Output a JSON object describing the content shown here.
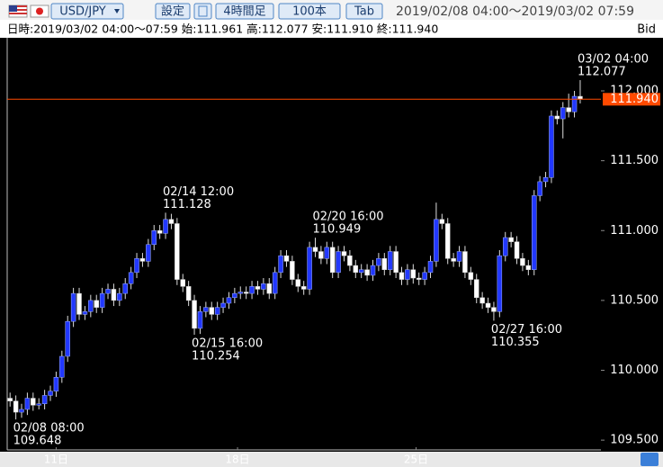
{
  "header": {
    "pair": "USD/JPY",
    "buttons": [
      "設定",
      "4時間足",
      "100本",
      "Tab"
    ],
    "range": "2019/02/08 04:00〜2019/03/02 07:59"
  },
  "info": {
    "text": "日時:2019/03/02 04:00〜07:59 始:111.961 高:112.077 安:111.910 終:111.940",
    "side": "Bid"
  },
  "chart_data": {
    "type": "candlestick",
    "up_color": "#2238ff",
    "down_color": "#ffffff",
    "ylim": [
      109.43,
      112.38
    ],
    "yticks": [
      {
        "value": 109.5,
        "label": "109.500"
      },
      {
        "value": 110,
        "label": "110.000"
      },
      {
        "value": 110.5,
        "label": "110.500"
      },
      {
        "value": 111,
        "label": "111.000"
      },
      {
        "value": 111.5,
        "label": "111.500"
      },
      {
        "value": 112,
        "label": "112.000"
      }
    ],
    "xlim": [
      -0.5,
      102.6
    ],
    "xticks": [
      {
        "value": 8,
        "label": "11日"
      },
      {
        "value": 39.5,
        "label": "18日"
      },
      {
        "value": 70.5,
        "label": "25日"
      }
    ],
    "last_price": {
      "value": 111.94,
      "label": "111.940"
    },
    "last_color": "#ff4a00",
    "annotations": [
      {
        "date": "02/08 08:00",
        "price": 109.648
      },
      {
        "date": "02/14 12:00",
        "price": 111.128
      },
      {
        "date": "02/15 16:00",
        "price": 110.254
      },
      {
        "date": "02/20 16:00",
        "price": 110.949
      },
      {
        "date": "02/27 16:00",
        "price": 110.355
      },
      {
        "date": "03/02 04:00",
        "price": 112.077
      }
    ],
    "ohlc": [
      [
        109.8,
        109.84,
        109.74,
        109.78
      ],
      [
        109.78,
        109.82,
        109.648,
        109.7
      ],
      [
        109.7,
        109.76,
        109.66,
        109.72
      ],
      [
        109.72,
        109.84,
        109.68,
        109.8
      ],
      [
        109.8,
        109.84,
        109.71,
        109.75
      ],
      [
        109.75,
        109.8,
        109.72,
        109.76
      ],
      [
        109.76,
        109.86,
        109.72,
        109.82
      ],
      [
        109.82,
        109.89,
        109.78,
        109.85
      ],
      [
        109.85,
        109.99,
        109.81,
        109.95
      ],
      [
        109.95,
        110.14,
        109.91,
        110.1
      ],
      [
        110.1,
        110.39,
        110.06,
        110.35
      ],
      [
        110.35,
        110.59,
        110.31,
        110.55
      ],
      [
        110.55,
        110.59,
        110.36,
        110.4
      ],
      [
        110.4,
        110.46,
        110.36,
        110.42
      ],
      [
        110.42,
        110.54,
        110.38,
        110.5
      ],
      [
        110.5,
        110.54,
        110.41,
        110.45
      ],
      [
        110.45,
        110.59,
        110.41,
        110.55
      ],
      [
        110.55,
        110.62,
        110.51,
        110.58
      ],
      [
        110.58,
        110.62,
        110.46,
        110.5
      ],
      [
        110.5,
        110.59,
        110.46,
        110.55
      ],
      [
        110.55,
        110.66,
        110.51,
        110.62
      ],
      [
        110.62,
        110.74,
        110.58,
        110.7
      ],
      [
        110.7,
        110.84,
        110.66,
        110.8
      ],
      [
        110.8,
        110.84,
        110.74,
        110.78
      ],
      [
        110.78,
        110.94,
        110.74,
        110.9
      ],
      [
        110.9,
        111.04,
        110.86,
        111.0
      ],
      [
        111.0,
        111.04,
        110.94,
        110.98
      ],
      [
        110.98,
        111.128,
        110.94,
        111.08
      ],
      [
        111.08,
        111.12,
        111.01,
        111.05
      ],
      [
        111.05,
        111.09,
        110.61,
        110.65
      ],
      [
        110.65,
        110.69,
        110.56,
        110.6
      ],
      [
        110.6,
        110.64,
        110.46,
        110.5
      ],
      [
        110.5,
        110.54,
        110.254,
        110.3
      ],
      [
        110.3,
        110.46,
        110.26,
        110.42
      ],
      [
        110.42,
        110.49,
        110.38,
        110.45
      ],
      [
        110.45,
        110.49,
        110.36,
        110.4
      ],
      [
        110.4,
        110.49,
        110.36,
        110.45
      ],
      [
        110.45,
        110.52,
        110.41,
        110.48
      ],
      [
        110.48,
        110.56,
        110.44,
        110.52
      ],
      [
        110.52,
        110.59,
        110.48,
        110.55
      ],
      [
        110.55,
        110.6,
        110.51,
        110.56
      ],
      [
        110.56,
        110.6,
        110.51,
        110.55
      ],
      [
        110.55,
        110.64,
        110.51,
        110.6
      ],
      [
        110.6,
        110.64,
        110.54,
        110.58
      ],
      [
        110.58,
        110.66,
        110.54,
        110.62
      ],
      [
        110.62,
        110.66,
        110.51,
        110.55
      ],
      [
        110.55,
        110.74,
        110.51,
        110.7
      ],
      [
        110.7,
        110.86,
        110.66,
        110.82
      ],
      [
        110.82,
        110.86,
        110.74,
        110.78
      ],
      [
        110.78,
        110.82,
        110.61,
        110.65
      ],
      [
        110.65,
        110.69,
        110.56,
        110.6
      ],
      [
        110.6,
        110.64,
        110.54,
        110.58
      ],
      [
        110.58,
        110.92,
        110.54,
        110.88
      ],
      [
        110.88,
        110.949,
        110.81,
        110.85
      ],
      [
        110.85,
        110.89,
        110.76,
        110.8
      ],
      [
        110.8,
        110.92,
        110.76,
        110.88
      ],
      [
        110.88,
        110.92,
        110.66,
        110.7
      ],
      [
        110.7,
        110.89,
        110.66,
        110.85
      ],
      [
        110.85,
        110.89,
        110.78,
        110.82
      ],
      [
        110.82,
        110.86,
        110.71,
        110.75
      ],
      [
        110.75,
        110.79,
        110.66,
        110.7
      ],
      [
        110.7,
        110.76,
        110.66,
        110.72
      ],
      [
        110.72,
        110.76,
        110.64,
        110.68
      ],
      [
        110.68,
        110.79,
        110.64,
        110.75
      ],
      [
        110.75,
        110.84,
        110.71,
        110.8
      ],
      [
        110.8,
        110.84,
        110.68,
        110.72
      ],
      [
        110.72,
        110.89,
        110.68,
        110.85
      ],
      [
        110.85,
        110.89,
        110.66,
        110.7
      ],
      [
        110.7,
        110.74,
        110.61,
        110.65
      ],
      [
        110.65,
        110.76,
        110.61,
        110.72
      ],
      [
        110.72,
        110.76,
        110.62,
        110.66
      ],
      [
        110.66,
        110.7,
        110.61,
        110.65
      ],
      [
        110.65,
        110.74,
        110.61,
        110.7
      ],
      [
        110.7,
        110.82,
        110.66,
        110.78
      ],
      [
        110.78,
        111.2,
        110.74,
        111.08
      ],
      [
        111.08,
        111.12,
        111.01,
        111.05
      ],
      [
        111.05,
        111.09,
        110.76,
        110.8
      ],
      [
        110.8,
        110.84,
        110.74,
        110.78
      ],
      [
        110.78,
        110.89,
        110.74,
        110.85
      ],
      [
        110.85,
        110.89,
        110.66,
        110.7
      ],
      [
        110.7,
        110.74,
        110.61,
        110.65
      ],
      [
        110.65,
        110.69,
        110.48,
        110.52
      ],
      [
        110.52,
        110.56,
        110.44,
        110.48
      ],
      [
        110.48,
        110.52,
        110.41,
        110.45
      ],
      [
        110.45,
        110.49,
        110.355,
        110.42
      ],
      [
        110.42,
        110.86,
        110.38,
        110.82
      ],
      [
        110.82,
        110.99,
        110.78,
        110.95
      ],
      [
        110.95,
        110.99,
        110.88,
        110.92
      ],
      [
        110.92,
        110.96,
        110.76,
        110.8
      ],
      [
        110.8,
        110.84,
        110.71,
        110.75
      ],
      [
        110.75,
        110.79,
        110.68,
        110.72
      ],
      [
        110.72,
        111.29,
        110.68,
        111.25
      ],
      [
        111.25,
        111.39,
        111.21,
        111.35
      ],
      [
        111.35,
        111.42,
        111.31,
        111.38
      ],
      [
        111.38,
        111.86,
        111.34,
        111.82
      ],
      [
        111.82,
        111.86,
        111.76,
        111.8
      ],
      [
        111.8,
        111.92,
        111.66,
        111.88
      ],
      [
        111.88,
        111.98,
        111.81,
        111.85
      ],
      [
        111.85,
        112.0,
        111.81,
        111.961
      ],
      [
        111.961,
        112.077,
        111.91,
        111.94
      ]
    ]
  }
}
